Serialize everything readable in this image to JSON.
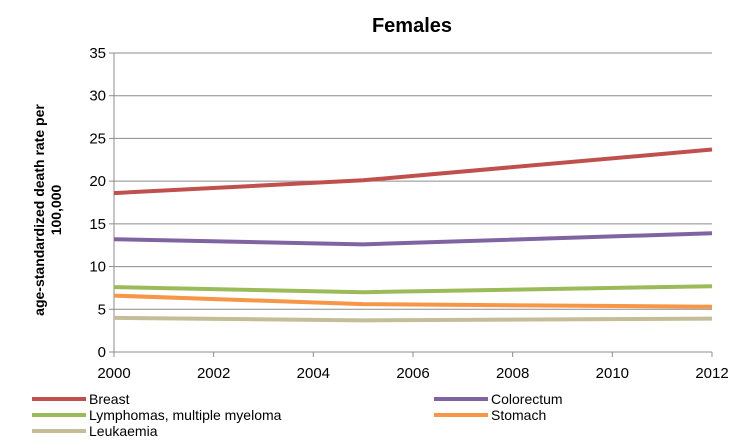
{
  "chart_data": {
    "type": "line",
    "title": "Females",
    "xlabel": "",
    "ylabel": "age-standardized death rate per 100,000",
    "ylabel_lines": [
      "age-standardized death rate per",
      "100,000"
    ],
    "x": [
      2000,
      2005,
      2012
    ],
    "x_ticks": [
      "2000",
      "2002",
      "2004",
      "2006",
      "2008",
      "2010",
      "2012"
    ],
    "xlim": [
      2000,
      2012
    ],
    "ylim": [
      0,
      35
    ],
    "y_ticks": [
      "0",
      "5",
      "10",
      "15",
      "20",
      "25",
      "30",
      "35"
    ],
    "grid": "horizontal",
    "legend_position": "bottom",
    "series": [
      {
        "name": "Breast",
        "color": "#c0504d",
        "values": [
          18.6,
          20.1,
          23.7
        ]
      },
      {
        "name": "Colorectum",
        "color": "#8064a2",
        "values": [
          13.2,
          12.6,
          13.9
        ]
      },
      {
        "name": "Lymphomas, multiple myeloma",
        "color": "#9bbb59",
        "values": [
          7.6,
          7.0,
          7.7
        ]
      },
      {
        "name": "Stomach",
        "color": "#f79646",
        "values": [
          6.6,
          5.6,
          5.3
        ]
      },
      {
        "name": "Leukaemia",
        "color": "#c4bd97",
        "values": [
          4.0,
          3.7,
          3.9
        ]
      }
    ]
  }
}
